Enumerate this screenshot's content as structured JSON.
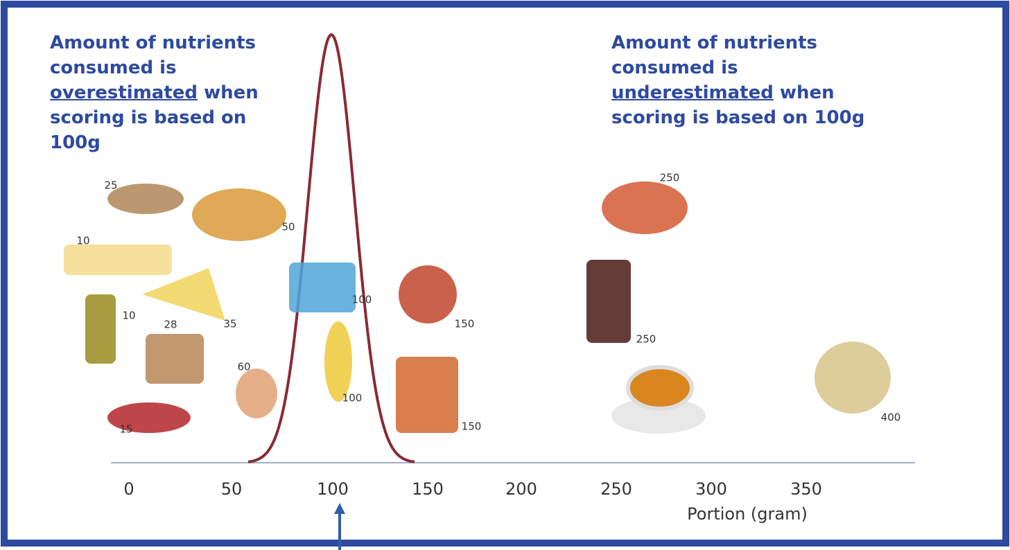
{
  "notes": {
    "left": {
      "before": "Amount of nutrients consumed is",
      "emphasis": "overestimated",
      "after": "when scoring is based on 100g"
    },
    "right": {
      "before": "Amount of nutrients consumed is",
      "emphasis": "underestimated",
      "after": "when scoring is based on 100g"
    }
  },
  "axis": {
    "ticks": [
      0,
      50,
      100,
      150,
      200,
      250,
      300,
      350
    ],
    "label": "Portion (gram)"
  },
  "foods": [
    25,
    50,
    10,
    35,
    10,
    28,
    15,
    60,
    100,
    100,
    150,
    150,
    250,
    250,
    400
  ]
}
